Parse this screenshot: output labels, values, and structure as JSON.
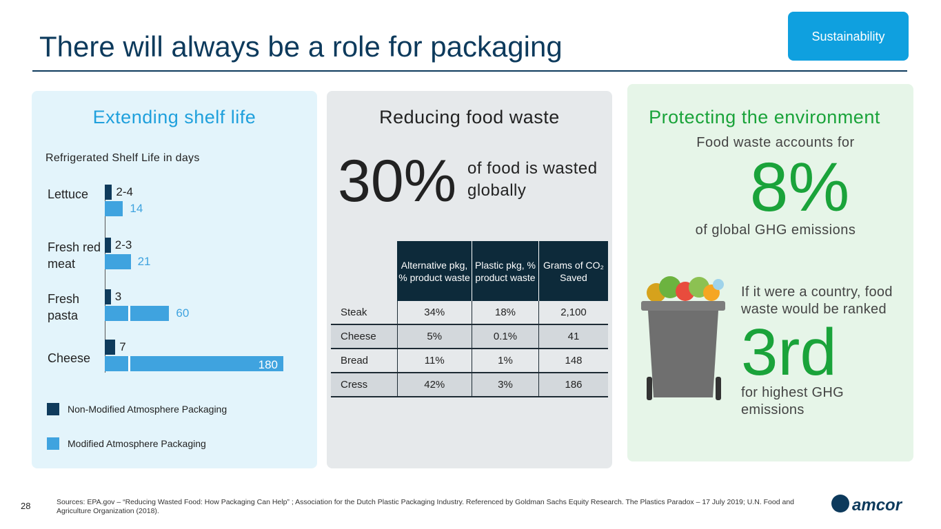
{
  "header": {
    "title": "There will always be a role for packaging",
    "tag": "Sustainability"
  },
  "chart_data": {
    "type": "bar",
    "orientation": "horizontal",
    "heading": "Extending shelf life",
    "title": "Refrigerated Shelf Life in days",
    "categories": [
      "Lettuce",
      "Fresh red meat",
      "Fresh pasta",
      "Cheese"
    ],
    "series": [
      {
        "name": "Non-Modified Atmosphere Packaging",
        "color": "#0f3b5c",
        "values": [
          4,
          3,
          3,
          7
        ],
        "value_labels": [
          "2-4",
          "2-3",
          "3",
          "7"
        ]
      },
      {
        "name": "Modified Atmosphere Packaging",
        "color": "#3fa3df",
        "values": [
          14,
          21,
          60,
          180
        ]
      }
    ]
  },
  "food_waste": {
    "heading": "Reducing food waste",
    "stat": "30%",
    "stat_text": "of food is wasted globally",
    "table": {
      "columns": [
        "Alternative pkg, % product waste",
        "Plastic pkg, % product waste",
        "Grams of CO₂ Saved"
      ],
      "rows": [
        [
          "Steak",
          "34%",
          "18%",
          "2,100"
        ],
        [
          "Cheese",
          "5%",
          "0.1%",
          "41"
        ],
        [
          "Bread",
          "11%",
          "1%",
          "148"
        ],
        [
          "Cress",
          "42%",
          "3%",
          "186"
        ]
      ]
    }
  },
  "environment": {
    "heading": "Protecting the environment",
    "intro": "Food waste accounts for",
    "stat": "8%",
    "stat_text": "of global GHG emissions",
    "rank_intro": "If it were a country, food waste would be ranked",
    "rank": "3rd",
    "rank_text": "for highest GHG emissions"
  },
  "footer": {
    "page": "28",
    "sources": "Sources: EPA.gov – “Reducing Wasted Food: How Packaging Can Help” ; Association for the Dutch Plastic Packaging Industry.  Referenced by Goldman Sachs Equity Research. The Plastics Paradox – 17 July 2019; U.N. Food and Agriculture Organization (2018).",
    "logo": "amcor"
  }
}
